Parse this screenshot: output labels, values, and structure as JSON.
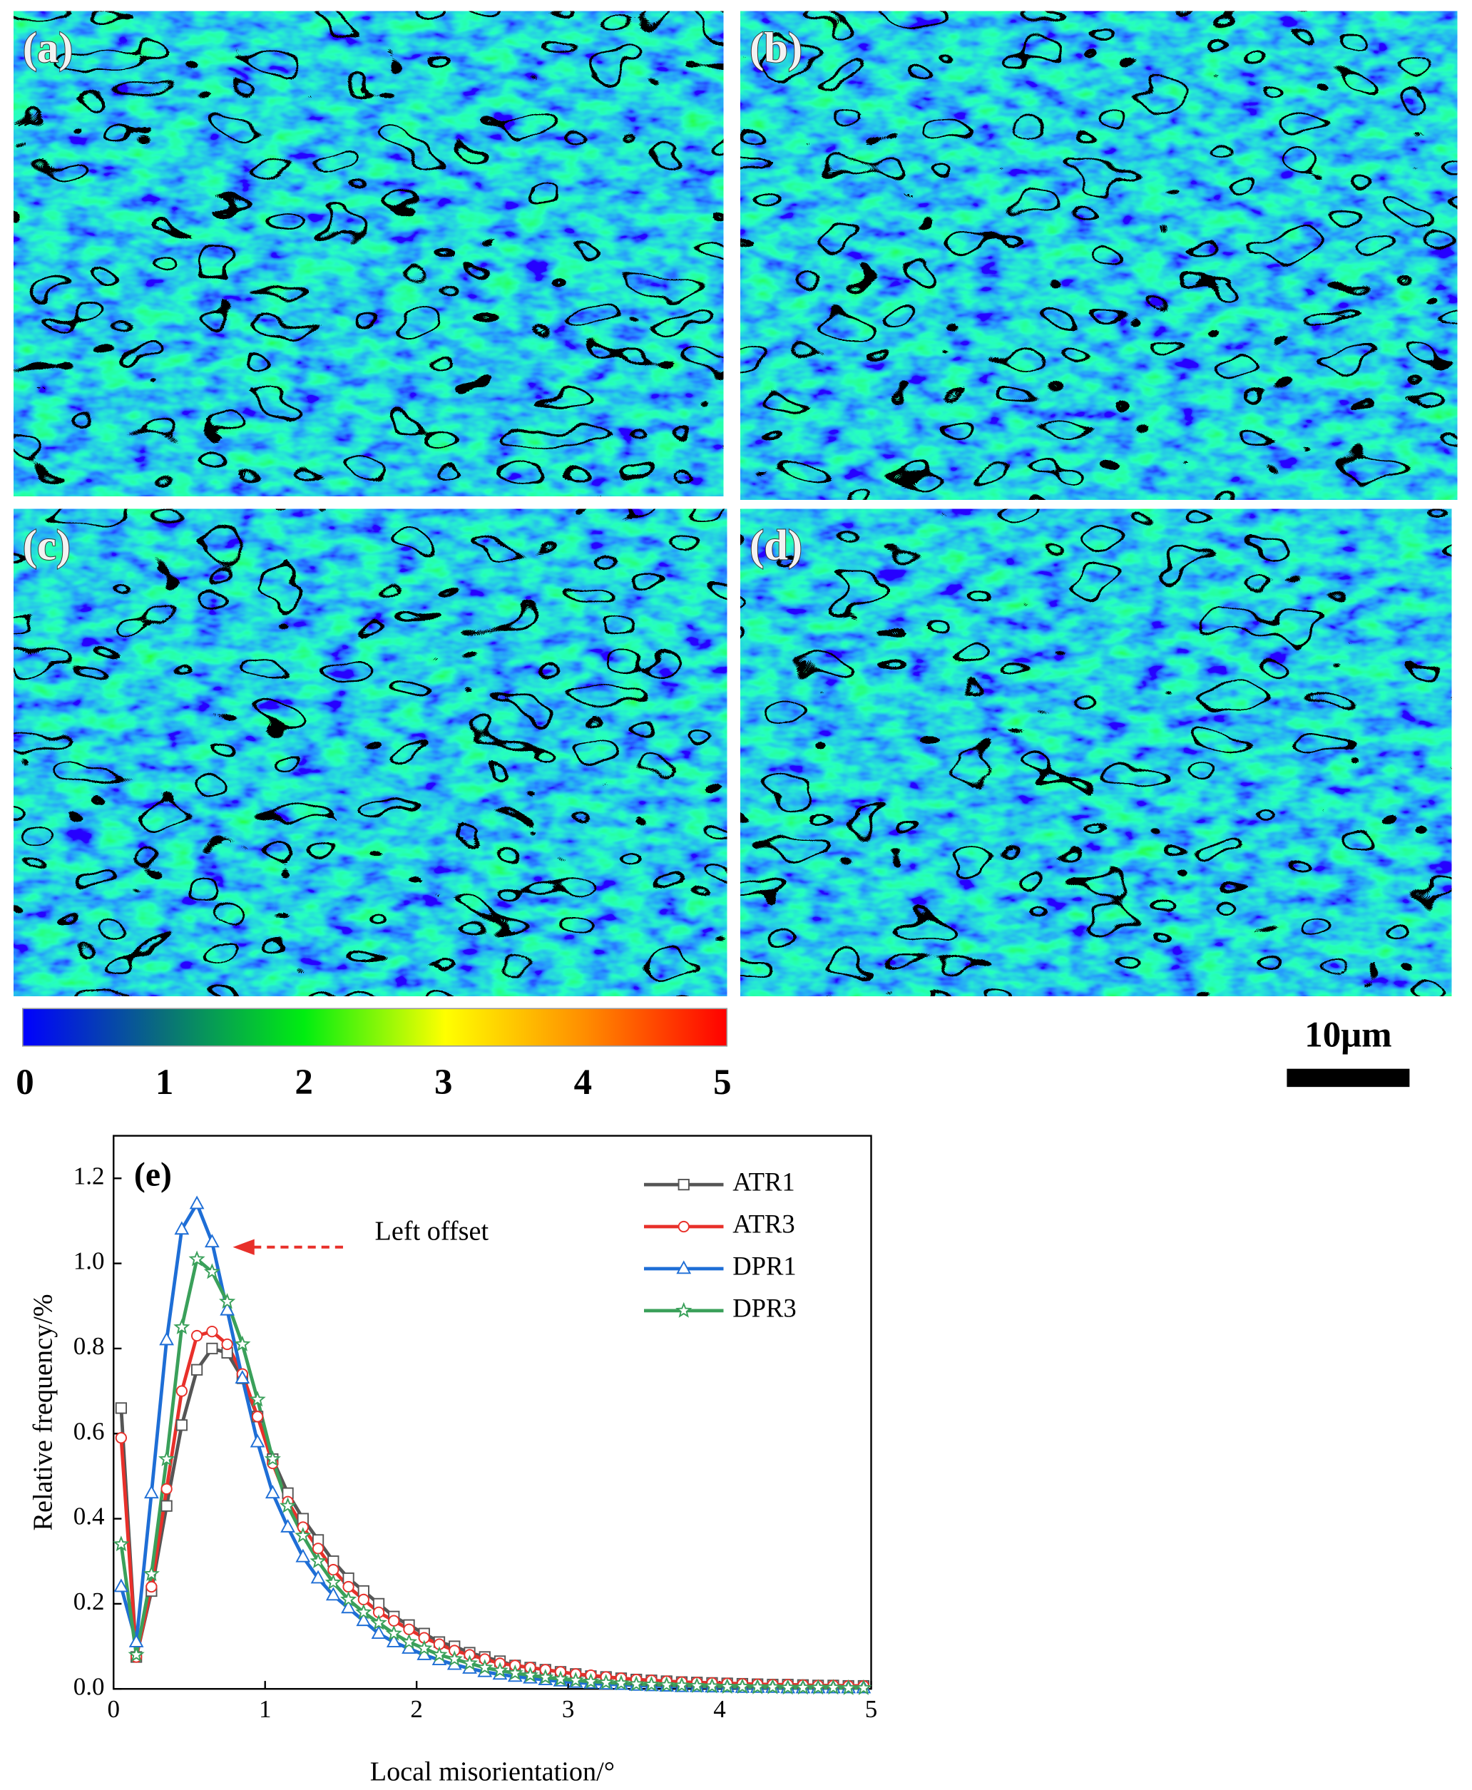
{
  "panels": [
    {
      "label": "(a)"
    },
    {
      "label": "(b)"
    },
    {
      "label": "(c)"
    },
    {
      "label": "(d)"
    }
  ],
  "colorbar": {
    "ticks": [
      0,
      1,
      2,
      3,
      4,
      5
    ]
  },
  "scale_bar": {
    "label": "10μm"
  },
  "chart_data": {
    "type": "line",
    "title": "(e)",
    "x_label": "Local misorientation/°",
    "y_label": "Relative frequency/%",
    "annotations": [
      {
        "text": "Left offset",
        "color": "#e8302a"
      }
    ],
    "x": [
      0.05,
      0.15,
      0.25,
      0.35,
      0.45,
      0.55,
      0.65,
      0.75,
      0.85,
      0.95,
      1.05,
      1.15,
      1.25,
      1.35,
      1.45,
      1.55,
      1.65,
      1.75,
      1.85,
      1.95,
      2.05,
      2.15,
      2.25,
      2.35,
      2.45,
      2.55,
      2.65,
      2.75,
      2.85,
      2.95,
      3.05,
      3.15,
      3.25,
      3.35,
      3.45,
      3.55,
      3.65,
      3.75,
      3.85,
      3.95,
      4.05,
      4.15,
      4.25,
      4.35,
      4.45,
      4.55,
      4.65,
      4.75,
      4.85,
      4.95
    ],
    "series": [
      {
        "name": "ATR1",
        "color": "#555555",
        "marker": "square",
        "values": [
          0.66,
          0.075,
          0.23,
          0.43,
          0.62,
          0.75,
          0.8,
          0.79,
          0.73,
          0.64,
          0.54,
          0.46,
          0.4,
          0.35,
          0.3,
          0.26,
          0.23,
          0.2,
          0.17,
          0.15,
          0.13,
          0.11,
          0.1,
          0.085,
          0.075,
          0.065,
          0.055,
          0.05,
          0.045,
          0.04,
          0.035,
          0.03,
          0.028,
          0.025,
          0.022,
          0.02,
          0.018,
          0.016,
          0.015,
          0.014,
          0.013,
          0.012,
          0.011,
          0.01,
          0.01,
          0.009,
          0.008,
          0.008,
          0.007,
          0.007
        ]
      },
      {
        "name": "ATR3",
        "color": "#e8302a",
        "marker": "circle",
        "values": [
          0.59,
          0.075,
          0.24,
          0.47,
          0.7,
          0.83,
          0.84,
          0.81,
          0.74,
          0.64,
          0.53,
          0.44,
          0.38,
          0.33,
          0.28,
          0.24,
          0.21,
          0.18,
          0.16,
          0.14,
          0.12,
          0.105,
          0.09,
          0.08,
          0.07,
          0.06,
          0.055,
          0.05,
          0.045,
          0.04,
          0.035,
          0.032,
          0.028,
          0.025,
          0.022,
          0.02,
          0.018,
          0.016,
          0.015,
          0.014,
          0.013,
          0.012,
          0.011,
          0.01,
          0.01,
          0.009,
          0.008,
          0.008,
          0.007,
          0.007
        ]
      },
      {
        "name": "DPR1",
        "color": "#1e6ed6",
        "marker": "triangle",
        "values": [
          0.24,
          0.11,
          0.46,
          0.82,
          1.08,
          1.14,
          1.05,
          0.89,
          0.73,
          0.58,
          0.46,
          0.38,
          0.31,
          0.26,
          0.22,
          0.19,
          0.16,
          0.13,
          0.11,
          0.095,
          0.08,
          0.068,
          0.057,
          0.048,
          0.04,
          0.034,
          0.029,
          0.025,
          0.021,
          0.018,
          0.015,
          0.013,
          0.011,
          0.01,
          0.008,
          0.007,
          0.006,
          0.005,
          0.005,
          0.004,
          0.004,
          0.003,
          0.003,
          0.003,
          0.002,
          0.002,
          0.002,
          0.002,
          0.002,
          0.002
        ]
      },
      {
        "name": "DPR3",
        "color": "#3aa05a",
        "marker": "star",
        "values": [
          0.34,
          0.08,
          0.27,
          0.54,
          0.85,
          1.01,
          0.98,
          0.91,
          0.81,
          0.68,
          0.54,
          0.43,
          0.36,
          0.3,
          0.25,
          0.21,
          0.18,
          0.155,
          0.13,
          0.11,
          0.095,
          0.08,
          0.07,
          0.06,
          0.05,
          0.043,
          0.037,
          0.032,
          0.027,
          0.023,
          0.02,
          0.017,
          0.015,
          0.013,
          0.011,
          0.01,
          0.009,
          0.008,
          0.007,
          0.006,
          0.005,
          0.005,
          0.004,
          0.004,
          0.003,
          0.003,
          0.003,
          0.003,
          0.002,
          0.002
        ]
      }
    ],
    "xlim": [
      0,
      5
    ],
    "xticks": [
      0,
      1,
      2,
      3,
      4,
      5
    ],
    "ylim": [
      0,
      1.3
    ],
    "yticks": [
      {
        "value": 0,
        "label": "0.0"
      },
      0.2,
      0.4,
      0.6,
      0.8,
      {
        "value": 1,
        "label": "1.0"
      },
      1.2
    ],
    "grid": false,
    "legend": "top-right"
  }
}
